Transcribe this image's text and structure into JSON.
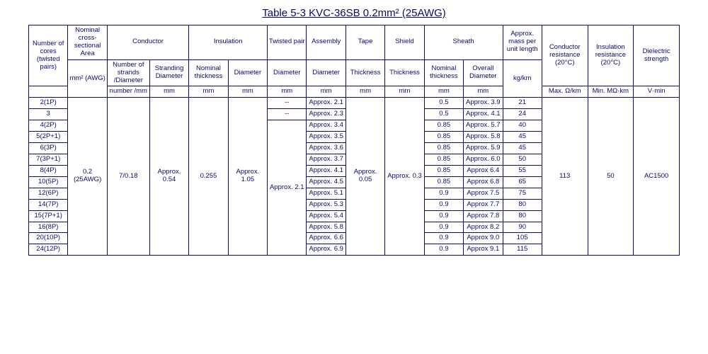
{
  "title": "Table 5-3 KVC-36SB   0.2mm² (25AWG)",
  "headers": {
    "cores": "Number of cores (twisted pairs)",
    "area_top": "Nominal cross-sectional Area",
    "area_unit": "mm²\n(AWG)",
    "conductor": "Conductor",
    "strands_top": "Number of strands",
    "strands_mid": "/Diameter",
    "strands_unit": "number /mm",
    "stranding": "Stranding Diameter",
    "mm": "mm",
    "insulation": "Insulation",
    "nthick": "Nominal thickness",
    "diameter": "Diameter",
    "twisted": "Twisted pair",
    "assembly": "Assembly",
    "tape": "Tape",
    "thickness": "Thickness",
    "shield": "Shield",
    "sheath": "Sheath",
    "overall": "Overall Diameter",
    "mass": "Approx. mass per unit length",
    "mass_unit": "kg/km",
    "condres": "Conductor resistance (20°C)",
    "condres_unit": "Max. Ω/km",
    "insres": "Insulation resistance (20°C)",
    "insres_unit": "Min. MΩ·km",
    "diel": "Dielectric strength",
    "diel_unit": "V·min"
  },
  "fixed": {
    "area": "0.2 (25AWG)",
    "strands": "7/0.18",
    "strdia": "Approx. 0.54",
    "nthick": "0.255",
    "insdia": "Approx. 1.05",
    "twist21": "Approx. 2.1",
    "tape": "Approx. 0.05",
    "shield": "Approx. 0.3",
    "cond": "113",
    "ins": "50",
    "diel": "AC1500"
  },
  "rows": [
    {
      "c": "2(1P)",
      "tw": "--",
      "asm": "Approx. 2.1",
      "st": "0.5",
      "od": "Approx. 3.9",
      "m": "21"
    },
    {
      "c": "3",
      "tw": "--",
      "asm": "Approx. 2.3",
      "st": "0.5",
      "od": "Approx. 4.1",
      "m": "24"
    },
    {
      "c": "4(2P)",
      "asm": "Approx. 3.4",
      "st": "0.85",
      "od": "Approx. 5.7",
      "m": "40"
    },
    {
      "c": "5(2P+1)",
      "asm": "Approx. 3.5",
      "st": "0.85",
      "od": "Approx. 5.8",
      "m": "45"
    },
    {
      "c": "6(3P)",
      "asm": "Approx. 3.6",
      "st": "0.85",
      "od": "Approx. 5.9",
      "m": "45"
    },
    {
      "c": "7(3P+1)",
      "asm": "Approx. 3.7",
      "st": "0.85",
      "od": "Approx. 6.0",
      "m": "50"
    },
    {
      "c": "8(4P)",
      "asm": "Approx. 4.1",
      "st": "0.85",
      "od": "Approx 6.4",
      "m": "55"
    },
    {
      "c": "10(5P)",
      "asm": "Approx. 4.5",
      "st": "0.85",
      "od": "Approx 6.8",
      "m": "65"
    },
    {
      "c": "12(6P)",
      "asm": "Approx. 5.1",
      "st": "0.9",
      "od": "Approx 7.5",
      "m": "75"
    },
    {
      "c": "14(7P)",
      "asm": "Approx. 5.3",
      "st": "0.9",
      "od": "Approx 7.7",
      "m": "80"
    },
    {
      "c": "15(7P+1)",
      "asm": "Approx. 5.4",
      "st": "0.9",
      "od": "Approx 7.8",
      "m": "80"
    },
    {
      "c": "16(8P)",
      "asm": "Approx. 5.8",
      "st": "0.9",
      "od": "Approx 8.2",
      "m": "90"
    },
    {
      "c": "20(10P)",
      "asm": "Approx. 6.6",
      "st": "0.9",
      "od": "Approx 9.0",
      "m": "105"
    },
    {
      "c": "24(12P)",
      "asm": "Approx. 6.9",
      "st": "0.9",
      "od": "Approx 9.1",
      "m": "115"
    }
  ]
}
